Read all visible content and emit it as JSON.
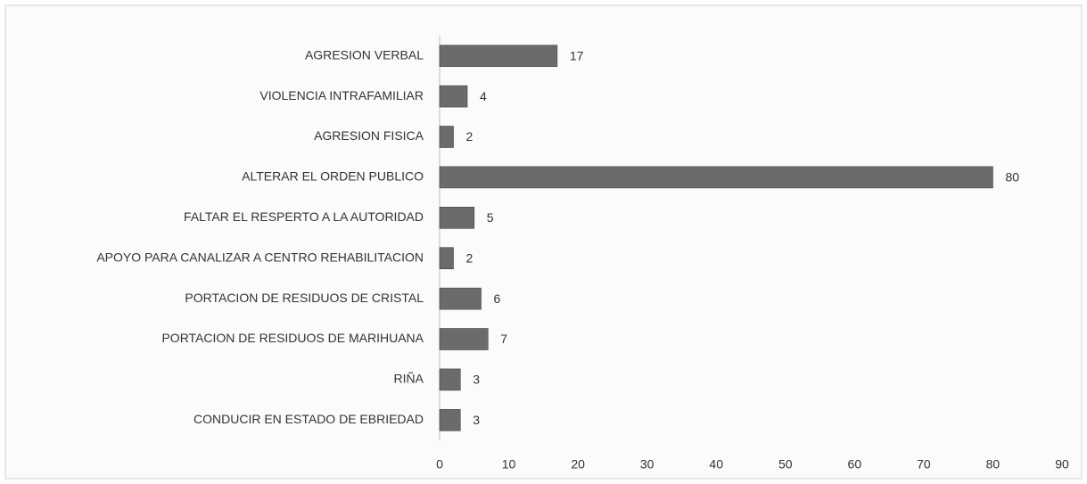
{
  "chart_data": {
    "type": "barh",
    "categories": [
      "AGRESION VERBAL",
      "VIOLENCIA INTRAFAMILIAR",
      "AGRESION FISICA",
      "ALTERAR EL ORDEN PUBLICO",
      "FALTAR EL RESPERTO A LA AUTORIDAD",
      "APOYO PARA CANALIZAR A CENTRO REHABILITACION",
      "PORTACION DE RESIDUOS DE CRISTAL",
      "PORTACION DE RESIDUOS DE MARIHUANA",
      "RIÑA",
      "CONDUCIR EN ESTADO DE EBRIEDAD"
    ],
    "values": [
      17,
      4,
      2,
      80,
      5,
      2,
      6,
      7,
      3,
      3
    ],
    "color": "#6b6b6b",
    "xlim": [
      0,
      90
    ],
    "xticks": [
      0,
      10,
      20,
      30,
      40,
      50,
      60,
      70,
      80,
      90
    ],
    "grid": false
  }
}
